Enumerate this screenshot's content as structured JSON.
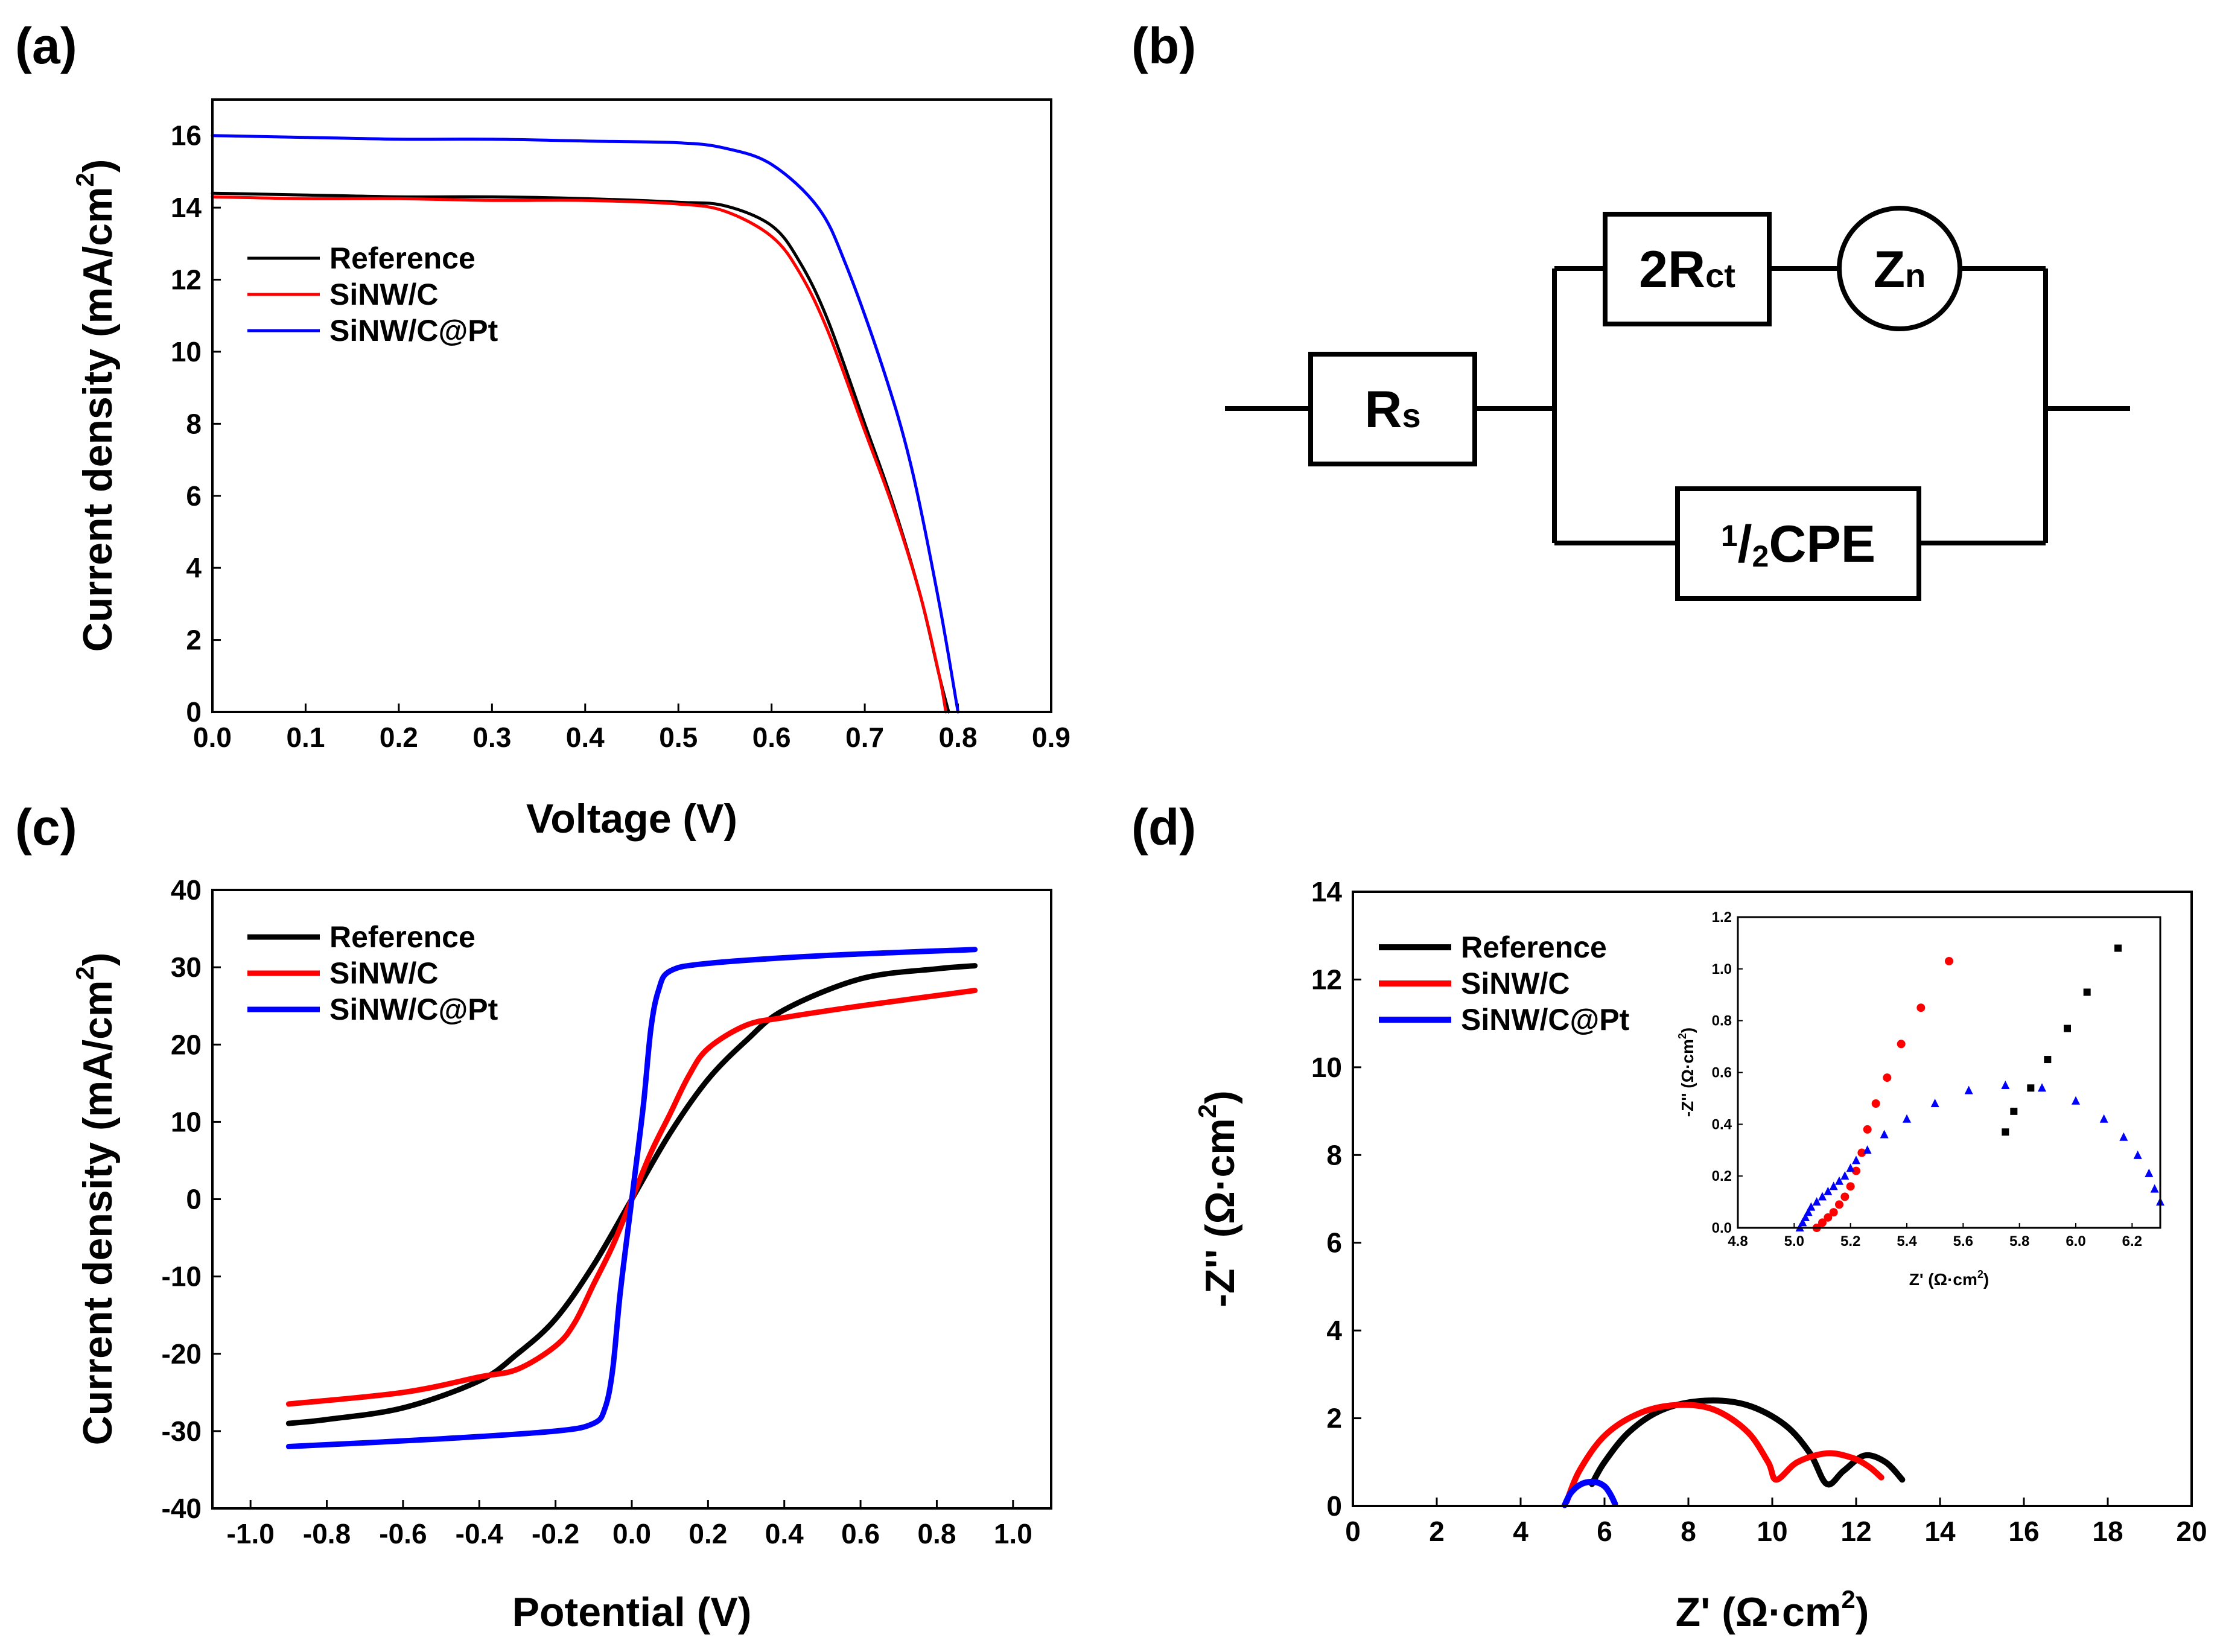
{
  "panels": {
    "a": "(a)",
    "b": "(b)",
    "c": "(c)",
    "d": "(d)"
  },
  "colors": {
    "reference": "#000000",
    "sinw_c": "#ff0000",
    "sinw_c_pt": "#0000ff"
  },
  "circuit": {
    "rs_main": "R",
    "rs_sub": "s",
    "rct_main": "2R",
    "rct_sub": "ct",
    "zn_main": "Z",
    "zn_sub": "n",
    "cpe_num": "1",
    "cpe_slash": "/",
    "cpe_den": "2",
    "cpe_main": "CPE"
  },
  "chart_data": [
    {
      "id": "a",
      "type": "line",
      "xlabel": "Voltage (V)",
      "ylabel_main": "Current density (mA/cm",
      "ylabel_sup": "2",
      "ylabel_tail": ")",
      "xlim": [
        0,
        0.9
      ],
      "ylim": [
        0,
        17
      ],
      "xticks": [
        "0.0",
        "0.1",
        "0.2",
        "0.3",
        "0.4",
        "0.5",
        "0.6",
        "0.7",
        "0.8",
        "0.9"
      ],
      "yticks": [
        "0",
        "2",
        "4",
        "6",
        "8",
        "10",
        "12",
        "14",
        "16"
      ],
      "legend_position": "upper-left",
      "series": [
        {
          "name": "Reference",
          "key": "reference",
          "x": [
            0,
            0.1,
            0.2,
            0.3,
            0.4,
            0.5,
            0.55,
            0.6,
            0.63,
            0.66,
            0.7,
            0.73,
            0.76,
            0.78,
            0.79
          ],
          "y": [
            14.4,
            14.35,
            14.3,
            14.3,
            14.25,
            14.15,
            14.05,
            13.5,
            12.5,
            10.9,
            8.0,
            5.8,
            3.2,
            1.0,
            0
          ]
        },
        {
          "name": "SiNW/C",
          "key": "sinw_c",
          "x": [
            0,
            0.1,
            0.2,
            0.3,
            0.4,
            0.5,
            0.55,
            0.6,
            0.63,
            0.66,
            0.7,
            0.73,
            0.76,
            0.78,
            0.787
          ],
          "y": [
            14.3,
            14.25,
            14.25,
            14.2,
            14.2,
            14.1,
            13.9,
            13.2,
            12.2,
            10.6,
            7.8,
            5.7,
            3.2,
            1.0,
            0
          ]
        },
        {
          "name": "SiNW/C@Pt",
          "key": "sinw_c_pt",
          "x": [
            0,
            0.1,
            0.2,
            0.3,
            0.4,
            0.5,
            0.55,
            0.6,
            0.65,
            0.68,
            0.72,
            0.75,
            0.78,
            0.8
          ],
          "y": [
            16.0,
            15.95,
            15.9,
            15.9,
            15.85,
            15.8,
            15.65,
            15.2,
            14.0,
            12.4,
            9.5,
            6.8,
            3.0,
            0
          ]
        }
      ]
    },
    {
      "id": "c",
      "type": "line",
      "xlabel": "Potential (V)",
      "ylabel_main": "Current density (mA/cm",
      "ylabel_sup": "2",
      "ylabel_tail": ")",
      "xlim": [
        -1.1,
        1.1
      ],
      "ylim": [
        -40,
        40
      ],
      "xticks": [
        "-1.0",
        "-0.8",
        "-0.6",
        "-0.4",
        "-0.2",
        "0.0",
        "0.2",
        "0.4",
        "0.6",
        "0.8",
        "1.0"
      ],
      "yticks": [
        "-40",
        "-30",
        "-20",
        "-10",
        "0",
        "10",
        "20",
        "30",
        "40"
      ],
      "legend_position": "upper-left",
      "series": [
        {
          "name": "Reference",
          "key": "reference",
          "x": [
            -0.9,
            -0.8,
            -0.6,
            -0.4,
            -0.3,
            -0.2,
            -0.1,
            0,
            0.1,
            0.2,
            0.3,
            0.4,
            0.6,
            0.8,
            0.9
          ],
          "y": [
            -29,
            -28.5,
            -27,
            -23.5,
            -20,
            -15.5,
            -8.5,
            0,
            8.5,
            15.5,
            20.5,
            24.5,
            28.5,
            29.8,
            30.2
          ]
        },
        {
          "name": "SiNW/C",
          "key": "sinw_c",
          "x": [
            -0.9,
            -0.6,
            -0.4,
            -0.3,
            -0.2,
            -0.15,
            -0.1,
            -0.05,
            0,
            0.05,
            0.1,
            0.15,
            0.2,
            0.3,
            0.4,
            0.6,
            0.9
          ],
          "y": [
            -26.5,
            -25,
            -23,
            -22,
            -19,
            -16,
            -11,
            -6,
            0,
            6,
            11,
            16,
            19.5,
            22.5,
            23.5,
            25,
            27
          ]
        },
        {
          "name": "SiNW/C@Pt",
          "key": "sinw_c_pt",
          "x": [
            -0.9,
            -0.5,
            -0.2,
            -0.1,
            -0.07,
            -0.05,
            -0.03,
            0,
            0.03,
            0.05,
            0.07,
            0.1,
            0.2,
            0.5,
            0.9
          ],
          "y": [
            -32,
            -31,
            -30,
            -29,
            -27,
            -22,
            -12,
            0,
            12,
            22,
            27,
            29.5,
            30.5,
            31.5,
            32.3
          ]
        }
      ]
    },
    {
      "id": "d",
      "type": "line",
      "xlabel_main": "Z' (Ω·cm",
      "xlabel_sup": "2",
      "xlabel_tail": ")",
      "ylabel_main": "-Z'' (Ω·cm",
      "ylabel_sup": "2",
      "ylabel_tail": ")",
      "xlim": [
        0,
        20
      ],
      "ylim": [
        0,
        14
      ],
      "xticks": [
        "0",
        "2",
        "4",
        "6",
        "8",
        "10",
        "12",
        "14",
        "16",
        "18",
        "20"
      ],
      "yticks": [
        "0",
        "2",
        "4",
        "6",
        "8",
        "10",
        "12",
        "14"
      ],
      "legend_position": "upper-left",
      "series": [
        {
          "name": "Reference",
          "key": "reference",
          "x": [
            5.7,
            6.0,
            6.6,
            7.4,
            8.4,
            9.4,
            10.3,
            10.9,
            11.3,
            11.7,
            12.2,
            12.7,
            13.1
          ],
          "y": [
            0.5,
            1.0,
            1.7,
            2.2,
            2.4,
            2.3,
            1.85,
            1.2,
            0.5,
            0.8,
            1.15,
            1.0,
            0.6
          ]
        },
        {
          "name": "SiNW/C",
          "key": "sinw_c",
          "x": [
            5.1,
            5.4,
            6.0,
            6.8,
            7.7,
            8.6,
            9.4,
            9.9,
            10.1,
            10.6,
            11.3,
            11.9,
            12.3,
            12.6
          ],
          "y": [
            0.1,
            0.8,
            1.6,
            2.1,
            2.3,
            2.2,
            1.7,
            1.0,
            0.6,
            1.0,
            1.2,
            1.1,
            0.9,
            0.65
          ]
        },
        {
          "name": "SiNW/C@Pt",
          "key": "sinw_c_pt",
          "x": [
            5.05,
            5.2,
            5.45,
            5.75,
            6.0,
            6.15,
            6.25
          ],
          "y": [
            0.02,
            0.3,
            0.5,
            0.55,
            0.45,
            0.25,
            0.05
          ]
        }
      ],
      "inset": {
        "type": "scatter",
        "xlabel_main": "Z' (Ω·cm",
        "xlabel_sup": "2",
        "xlabel_tail": ")",
        "ylabel_main": "-Z'' (Ω·cm",
        "ylabel_sup": "2",
        "ylabel_tail": ")",
        "xlim": [
          4.8,
          6.3
        ],
        "ylim": [
          0,
          1.2
        ],
        "xticks": [
          "4.8",
          "5.0",
          "5.2",
          "5.4",
          "5.6",
          "5.8",
          "6.0",
          "6.2"
        ],
        "yticks": [
          "0.0",
          "0.2",
          "0.4",
          "0.6",
          "0.8",
          "1.0",
          "1.2"
        ],
        "series": [
          {
            "key": "reference",
            "marker": "square",
            "x": [
              5.75,
              5.78,
              5.84,
              5.9,
              5.97,
              6.04,
              6.15
            ],
            "y": [
              0.37,
              0.45,
              0.54,
              0.65,
              0.77,
              0.91,
              1.08
            ]
          },
          {
            "key": "sinw_c",
            "marker": "circle",
            "x": [
              5.08,
              5.1,
              5.12,
              5.14,
              5.16,
              5.18,
              5.2,
              5.22,
              5.24,
              5.26,
              5.29,
              5.33,
              5.38,
              5.45,
              5.55
            ],
            "y": [
              0.0,
              0.02,
              0.04,
              0.06,
              0.09,
              0.12,
              0.16,
              0.22,
              0.29,
              0.38,
              0.48,
              0.58,
              0.71,
              0.85,
              1.03
            ]
          },
          {
            "key": "sinw_c_pt",
            "marker": "triangle",
            "x": [
              5.02,
              5.03,
              5.04,
              5.05,
              5.06,
              5.08,
              5.1,
              5.12,
              5.14,
              5.16,
              5.18,
              5.2,
              5.22,
              5.26,
              5.32,
              5.4,
              5.5,
              5.62,
              5.75,
              5.88,
              6.0,
              6.1,
              6.17,
              6.22,
              6.26,
              6.28,
              6.3
            ],
            "y": [
              0.0,
              0.02,
              0.04,
              0.06,
              0.08,
              0.1,
              0.12,
              0.14,
              0.16,
              0.18,
              0.2,
              0.23,
              0.26,
              0.3,
              0.36,
              0.42,
              0.48,
              0.53,
              0.55,
              0.54,
              0.49,
              0.42,
              0.35,
              0.28,
              0.21,
              0.15,
              0.1
            ]
          }
        ]
      }
    }
  ]
}
